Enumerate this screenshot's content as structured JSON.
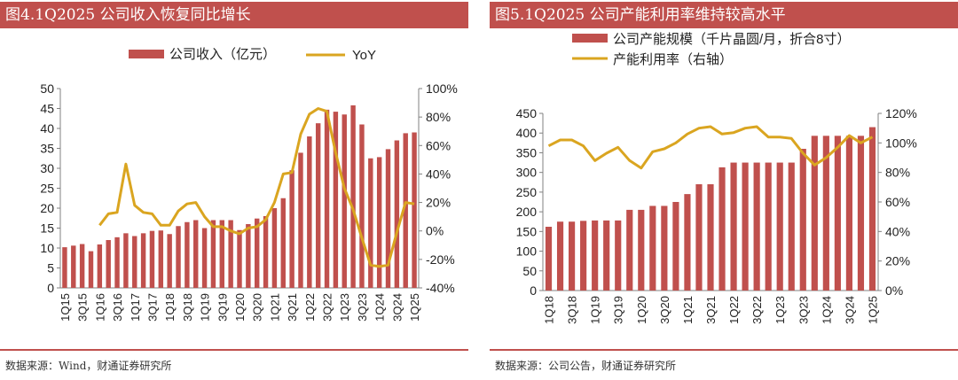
{
  "left": {
    "title": "图4.1Q2025 公司收入恢复同比增长",
    "source": "数据来源：Wind，财通证券研究所",
    "chart_data": {
      "type": "bar",
      "legend_position": "top",
      "grid": false,
      "categories": [
        "1Q15",
        "2Q15",
        "3Q15",
        "4Q15",
        "1Q16",
        "2Q16",
        "3Q16",
        "4Q16",
        "1Q17",
        "2Q17",
        "3Q17",
        "4Q17",
        "1Q18",
        "2Q18",
        "3Q18",
        "4Q18",
        "1Q19",
        "2Q19",
        "3Q19",
        "4Q19",
        "1Q20",
        "2Q20",
        "3Q20",
        "4Q20",
        "1Q21",
        "2Q21",
        "3Q21",
        "4Q21",
        "1Q22",
        "2Q22",
        "3Q22",
        "4Q22",
        "1Q23",
        "2Q23",
        "3Q23",
        "4Q23",
        "1Q24",
        "2Q24",
        "3Q24",
        "4Q24",
        "1Q25"
      ],
      "xticks": [
        "1Q15",
        "3Q15",
        "1Q16",
        "3Q16",
        "1Q17",
        "3Q17",
        "1Q18",
        "3Q18",
        "1Q19",
        "3Q19",
        "1Q20",
        "3Q20",
        "1Q21",
        "3Q21",
        "1Q22",
        "3Q22",
        "1Q23",
        "3Q23",
        "1Q24",
        "3Q24",
        "1Q25"
      ],
      "ylim": [
        0,
        50
      ],
      "yticks": [
        "0",
        "5",
        "10",
        "15",
        "20",
        "25",
        "30",
        "35",
        "40",
        "45",
        "50"
      ],
      "y2lim": [
        -40,
        100
      ],
      "y2ticks": [
        "-40%",
        "-20%",
        "0%",
        "20%",
        "40%",
        "60%",
        "80%",
        "100%"
      ],
      "series": [
        {
          "name": "公司收入（亿元）",
          "axis": "left",
          "color": "#c0504d",
          "values": [
            10.2,
            10.6,
            11.0,
            9.2,
            10.9,
            12.0,
            12.7,
            13.7,
            13.0,
            13.7,
            14.3,
            14.4,
            13.5,
            15.5,
            16.5,
            17.0,
            15.0,
            17.0,
            17.0,
            17.0,
            14.5,
            16.0,
            17.4,
            18.0,
            20.0,
            22.5,
            29.5,
            33.9,
            38.0,
            41.3,
            44.7,
            44.2,
            43.5,
            45.8,
            41.0,
            32.5,
            32.8,
            34.8,
            37.0,
            38.8,
            39.0
          ]
        },
        {
          "name": "YoY",
          "axis": "right",
          "color": "#daa520",
          "values": [
            null,
            null,
            null,
            null,
            4,
            12,
            13,
            47,
            18,
            13,
            12,
            4,
            4,
            14,
            19,
            20,
            10,
            3,
            3,
            0,
            -2,
            2,
            3,
            8,
            20,
            40,
            41,
            68,
            82,
            86,
            84,
            55,
            30,
            15,
            -5,
            -24,
            -25,
            -24,
            -1,
            20,
            19
          ]
        }
      ]
    }
  },
  "right": {
    "title": "图5.1Q2025 公司产能利用率维持较高水平",
    "source": "数据来源：公司公告，财通证券研究所",
    "chart_data": {
      "type": "bar",
      "legend_position": "top-left",
      "grid": false,
      "categories": [
        "1Q18",
        "2Q18",
        "3Q18",
        "4Q18",
        "1Q19",
        "2Q19",
        "3Q19",
        "4Q19",
        "1Q20",
        "2Q20",
        "3Q20",
        "4Q20",
        "1Q21",
        "2Q21",
        "3Q21",
        "4Q21",
        "1Q22",
        "2Q22",
        "3Q22",
        "4Q22",
        "1Q23",
        "2Q23",
        "3Q23",
        "4Q23",
        "1Q24",
        "2Q24",
        "3Q24",
        "4Q24",
        "1Q25"
      ],
      "xticks": [
        "1Q18",
        "3Q18",
        "1Q19",
        "3Q19",
        "1Q20",
        "3Q20",
        "1Q21",
        "3Q21",
        "1Q22",
        "3Q22",
        "1Q23",
        "3Q23",
        "1Q24",
        "3Q24",
        "1Q25"
      ],
      "ylim": [
        0,
        450
      ],
      "yticks": [
        "0",
        "50",
        "100",
        "150",
        "200",
        "250",
        "300",
        "350",
        "400",
        "450"
      ],
      "y2lim": [
        0,
        120
      ],
      "y2ticks": [
        "0%",
        "20%",
        "40%",
        "60%",
        "80%",
        "100%",
        "120%"
      ],
      "series": [
        {
          "name": "公司产能规模（千片晶圆/月，折合8寸）",
          "axis": "left",
          "color": "#c0504d",
          "values": [
            162,
            175,
            175,
            177,
            178,
            178,
            178,
            205,
            205,
            215,
            215,
            225,
            245,
            270,
            270,
            313,
            325,
            325,
            325,
            325,
            325,
            325,
            360,
            393,
            393,
            393,
            393,
            393,
            415
          ]
        },
        {
          "name": "产能利用率（右轴）",
          "axis": "right",
          "color": "#daa520",
          "values": [
            98,
            102,
            102,
            98,
            88,
            93,
            97,
            88,
            83,
            94,
            96,
            100,
            106,
            110,
            111,
            106,
            107,
            110,
            111,
            104,
            104,
            103,
            93,
            85,
            90,
            97,
            105,
            100,
            104
          ]
        }
      ]
    }
  }
}
